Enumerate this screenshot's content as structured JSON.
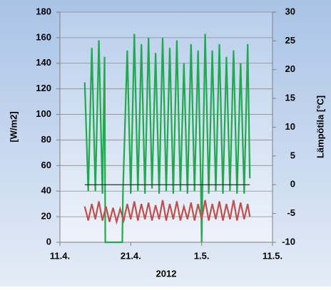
{
  "chart_data": {
    "type": "line",
    "xlabel": "2012",
    "ylabel": "[W/m2]",
    "y2label": "Lämpötila [°C]",
    "xlim": [
      102,
      132
    ],
    "xticks": [
      {
        "value": 102,
        "label": "11.4."
      },
      {
        "value": 112,
        "label": "21.4."
      },
      {
        "value": 122,
        "label": "1.5."
      },
      {
        "value": 132,
        "label": "11.5."
      }
    ],
    "ylim": [
      0,
      180
    ],
    "yticks": [
      0,
      20,
      40,
      60,
      80,
      100,
      120,
      140,
      160,
      180
    ],
    "y2lim": [
      -10,
      30
    ],
    "y2ticks": [
      -10,
      -5,
      0,
      5,
      10,
      15,
      20,
      25,
      30
    ],
    "grid": true,
    "series": [
      {
        "color": "#1faa4e",
        "x": [
          105.5,
          106,
          106.5,
          107,
          107.5,
          108,
          108.3,
          108.4,
          110.8,
          110.9,
          111.5,
          112,
          112.5,
          113,
          113.5,
          114,
          114.5,
          115,
          115.5,
          116,
          116.5,
          117,
          117.5,
          118,
          118.5,
          119,
          119.5,
          120,
          120.5,
          121,
          121.5,
          121.9,
          122,
          122.1,
          122.5,
          123,
          123.5,
          124,
          124.5,
          125,
          125.5,
          126,
          126.5,
          127,
          127.5,
          128,
          128.5,
          128.8
        ],
        "values": [
          125,
          40,
          152,
          40,
          158,
          38,
          145,
          0,
          0,
          40,
          150,
          38,
          163,
          40,
          155,
          38,
          160,
          42,
          148,
          38,
          160,
          40,
          152,
          38,
          158,
          40,
          140,
          38,
          155,
          40,
          150,
          40,
          0,
          40,
          163,
          38,
          150,
          40,
          155,
          38,
          145,
          40,
          150,
          38,
          140,
          38,
          155,
          50
        ]
      },
      {
        "color": "#c0504d",
        "x": [
          105.5,
          106,
          106.5,
          107,
          107.5,
          108,
          108.5,
          109,
          109.5,
          110,
          110.5,
          111,
          111.5,
          112,
          112.5,
          113,
          113.5,
          114,
          114.5,
          115,
          115.5,
          116,
          116.5,
          117,
          117.5,
          118,
          118.5,
          119,
          119.5,
          120,
          120.5,
          121,
          121.5,
          122,
          122.5,
          123,
          123.5,
          124,
          124.5,
          125,
          125.5,
          126,
          126.5,
          127,
          127.5,
          128,
          128.5,
          128.8
        ],
        "values": [
          28,
          17,
          30,
          18,
          32,
          17,
          28,
          16,
          27,
          16,
          26,
          17,
          30,
          18,
          32,
          17,
          30,
          18,
          31,
          17,
          29,
          18,
          33,
          17,
          30,
          18,
          32,
          17,
          28,
          18,
          31,
          17,
          30,
          18,
          33,
          17,
          30,
          18,
          32,
          17,
          30,
          18,
          33,
          17,
          31,
          18,
          30,
          20
        ]
      },
      {
        "color": "#000000",
        "x": [
          105.5,
          128.8
        ],
        "values": [
          45,
          45
        ]
      }
    ]
  }
}
